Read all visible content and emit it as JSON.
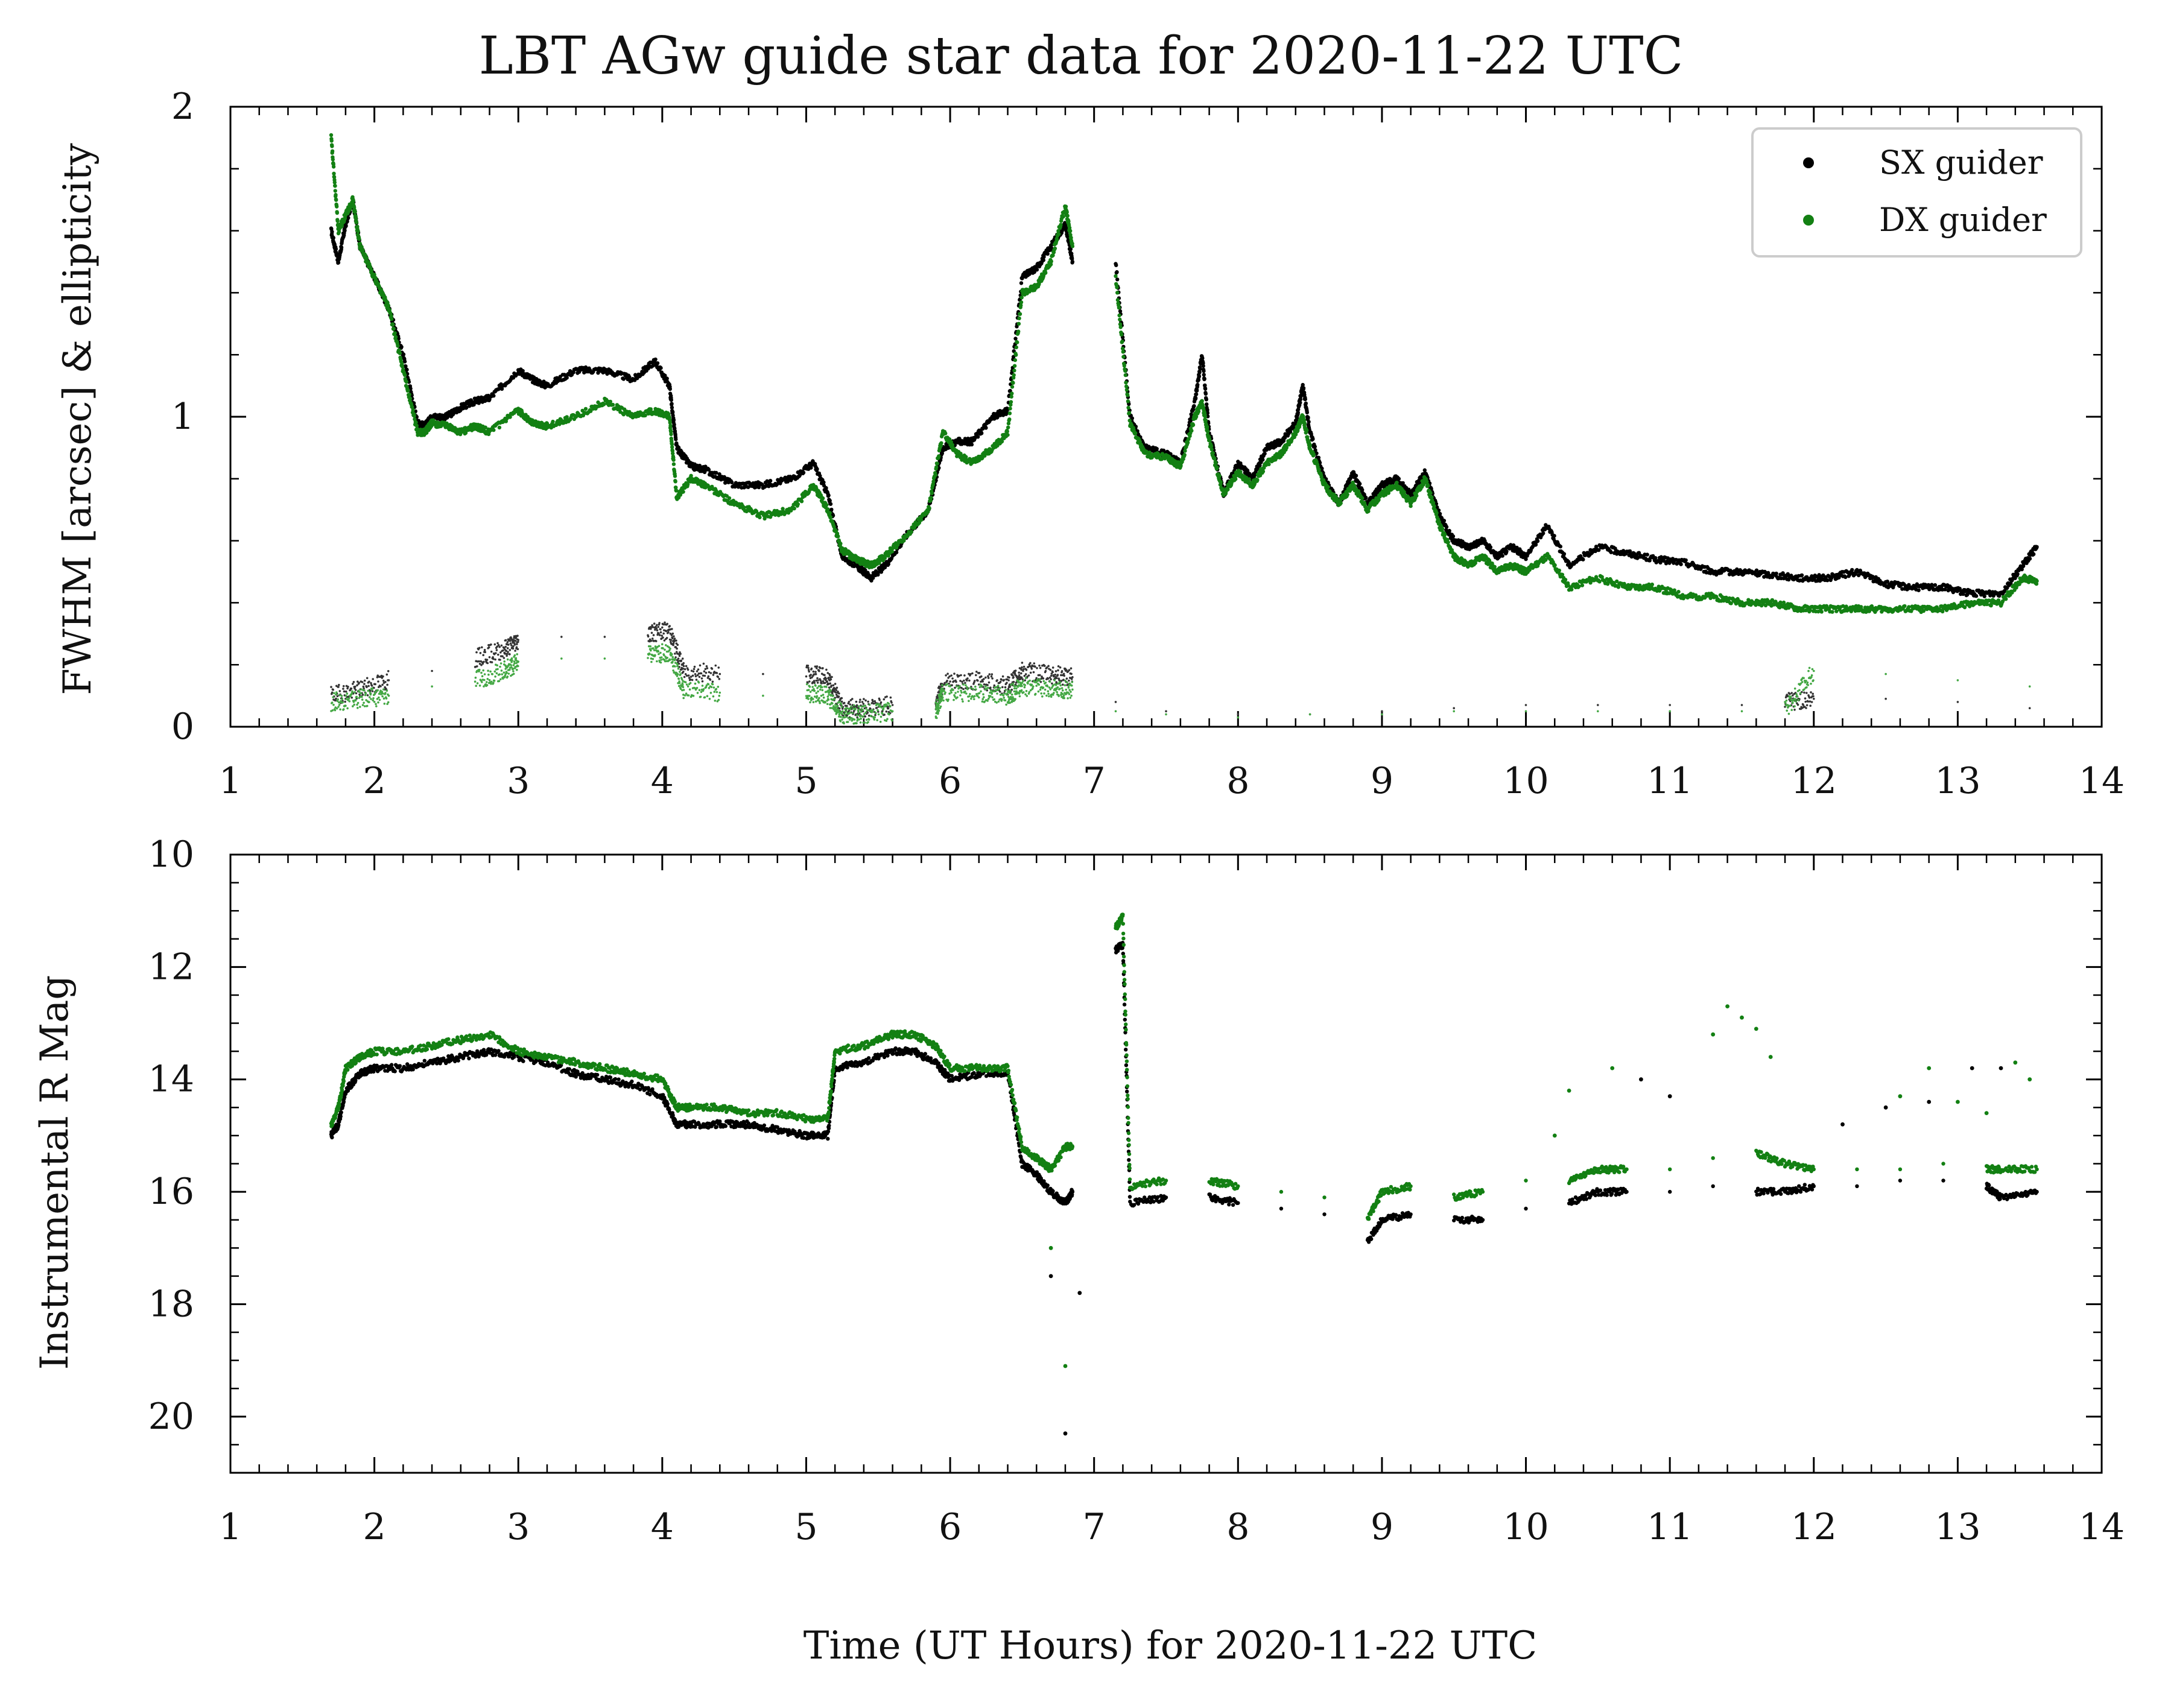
{
  "figure": {
    "title": "LBT AGw guide star data for 2020-11-22 UTC",
    "xlabel": "Time (UT Hours) for 2020-11-22 UTC"
  },
  "colors": {
    "sx": "#000000",
    "dx": "#138013",
    "sx_ellipticity": "#333333",
    "dx_ellipticity": "#44a844"
  },
  "legend": {
    "placement": "top-right",
    "entries": [
      {
        "name": "SX guider",
        "color": "#000000"
      },
      {
        "name": "DX guider",
        "color": "#138013"
      }
    ]
  },
  "chart_data": [
    {
      "type": "scatter",
      "panel": "top",
      "title": "LBT AGw guide star data for 2020-11-22 UTC",
      "xlabel": "",
      "ylabel": "FWHM [arcsec] & ellipticity",
      "xlim": [
        1,
        14
      ],
      "ylim": [
        0,
        2
      ],
      "xticks": [
        1,
        2,
        3,
        4,
        5,
        6,
        7,
        8,
        9,
        10,
        11,
        12,
        13,
        14
      ],
      "yticks": [
        0,
        1,
        2
      ],
      "grid": false,
      "legend": "top-right",
      "series": [
        {
          "name": "SX guider",
          "kind": "fwhm",
          "color": "#000000",
          "x": [
            1.7,
            1.75,
            1.8,
            1.85,
            1.9,
            2.0,
            2.1,
            2.2,
            2.3,
            2.35,
            2.4,
            2.5,
            2.6,
            2.7,
            2.8,
            3.0,
            3.1,
            3.2,
            3.4,
            3.6,
            3.8,
            3.95,
            4.05,
            4.1,
            4.2,
            4.3,
            4.5,
            4.7,
            4.9,
            5.05,
            5.15,
            5.25,
            5.35,
            5.45,
            5.55,
            5.7,
            5.85,
            5.95,
            6.05,
            6.15,
            6.3,
            6.4,
            6.5,
            6.6,
            6.7,
            6.8,
            6.85,
            7.15,
            7.25,
            7.35,
            7.5,
            7.6,
            7.7,
            7.75,
            7.8,
            7.9,
            8.0,
            8.1,
            8.2,
            8.3,
            8.4,
            8.45,
            8.5,
            8.6,
            8.7,
            8.8,
            8.9,
            9.0,
            9.1,
            9.2,
            9.3,
            9.4,
            9.5,
            9.6,
            9.7,
            9.8,
            9.9,
            10.0,
            10.15,
            10.3,
            10.5,
            10.7,
            10.9,
            11.1,
            11.3,
            11.5,
            11.7,
            11.9,
            12.1,
            12.3,
            12.5,
            12.7,
            12.9,
            13.1,
            13.3,
            13.45,
            13.55
          ],
          "y": [
            1.6,
            1.5,
            1.62,
            1.7,
            1.55,
            1.45,
            1.35,
            1.2,
            0.98,
            0.97,
            1.0,
            1.0,
            1.03,
            1.05,
            1.06,
            1.15,
            1.12,
            1.1,
            1.15,
            1.15,
            1.12,
            1.18,
            1.1,
            0.9,
            0.84,
            0.83,
            0.78,
            0.78,
            0.8,
            0.85,
            0.75,
            0.55,
            0.52,
            0.48,
            0.52,
            0.62,
            0.7,
            0.9,
            0.92,
            0.92,
            1.0,
            1.02,
            1.45,
            1.48,
            1.55,
            1.62,
            1.5,
            1.5,
            1.0,
            0.9,
            0.88,
            0.85,
            1.05,
            1.2,
            0.95,
            0.75,
            0.85,
            0.8,
            0.9,
            0.92,
            0.98,
            1.1,
            0.95,
            0.8,
            0.72,
            0.82,
            0.72,
            0.78,
            0.8,
            0.75,
            0.82,
            0.68,
            0.6,
            0.58,
            0.6,
            0.55,
            0.58,
            0.55,
            0.65,
            0.52,
            0.58,
            0.56,
            0.54,
            0.53,
            0.5,
            0.5,
            0.49,
            0.48,
            0.48,
            0.5,
            0.46,
            0.45,
            0.45,
            0.43,
            0.43,
            0.52,
            0.58
          ]
        },
        {
          "name": "DX guider",
          "kind": "fwhm",
          "color": "#138013",
          "x": [
            1.7,
            1.75,
            1.8,
            1.85,
            1.9,
            2.0,
            2.1,
            2.2,
            2.3,
            2.35,
            2.4,
            2.5,
            2.6,
            2.7,
            2.8,
            3.0,
            3.1,
            3.2,
            3.4,
            3.6,
            3.8,
            3.95,
            4.05,
            4.1,
            4.2,
            4.3,
            4.5,
            4.7,
            4.9,
            5.05,
            5.15,
            5.25,
            5.35,
            5.45,
            5.55,
            5.7,
            5.85,
            5.95,
            6.05,
            6.15,
            6.3,
            6.4,
            6.5,
            6.6,
            6.7,
            6.8,
            6.85,
            7.15,
            7.25,
            7.35,
            7.5,
            7.6,
            7.7,
            7.75,
            7.8,
            7.9,
            8.0,
            8.1,
            8.2,
            8.3,
            8.4,
            8.45,
            8.5,
            8.6,
            8.7,
            8.8,
            8.9,
            9.0,
            9.1,
            9.2,
            9.3,
            9.4,
            9.5,
            9.6,
            9.7,
            9.8,
            9.9,
            10.0,
            10.15,
            10.3,
            10.5,
            10.7,
            10.9,
            11.1,
            11.3,
            11.5,
            11.7,
            11.9,
            12.1,
            12.3,
            12.5,
            12.7,
            12.9,
            13.1,
            13.3,
            13.45,
            13.55
          ],
          "y": [
            1.9,
            1.6,
            1.65,
            1.7,
            1.55,
            1.45,
            1.35,
            1.15,
            0.95,
            0.95,
            0.98,
            0.97,
            0.95,
            0.97,
            0.95,
            1.02,
            0.98,
            0.97,
            1.0,
            1.05,
            1.0,
            1.02,
            1.0,
            0.74,
            0.8,
            0.78,
            0.72,
            0.68,
            0.7,
            0.78,
            0.7,
            0.57,
            0.54,
            0.52,
            0.55,
            0.62,
            0.7,
            0.95,
            0.88,
            0.85,
            0.9,
            0.95,
            1.4,
            1.42,
            1.5,
            1.68,
            1.55,
            1.45,
            0.98,
            0.88,
            0.87,
            0.84,
            1.0,
            1.05,
            0.92,
            0.75,
            0.82,
            0.78,
            0.85,
            0.88,
            0.95,
            1.0,
            0.9,
            0.78,
            0.72,
            0.78,
            0.7,
            0.75,
            0.78,
            0.72,
            0.8,
            0.65,
            0.55,
            0.52,
            0.55,
            0.5,
            0.52,
            0.5,
            0.55,
            0.45,
            0.48,
            0.45,
            0.45,
            0.42,
            0.42,
            0.4,
            0.4,
            0.38,
            0.38,
            0.38,
            0.38,
            0.38,
            0.38,
            0.4,
            0.4,
            0.48,
            0.47
          ]
        },
        {
          "name": "SX ellipticity",
          "kind": "ellipticity",
          "color": "#333333",
          "x": [
            1.7,
            1.9,
            2.1,
            2.4,
            2.7,
            2.9,
            3.0,
            3.3,
            3.6,
            3.9,
            4.05,
            4.15,
            4.4,
            4.7,
            5.0,
            5.15,
            5.25,
            5.4,
            5.6,
            5.9,
            5.95,
            6.2,
            6.4,
            6.5,
            6.7,
            6.85,
            7.15,
            7.5,
            8.0,
            8.5,
            9.0,
            9.5,
            10.0,
            10.5,
            11.0,
            11.5,
            11.8,
            12.0,
            12.5,
            13.0,
            13.5
          ],
          "y": [
            0.1,
            0.12,
            0.15,
            0.18,
            0.22,
            0.25,
            0.28,
            0.29,
            0.29,
            0.3,
            0.31,
            0.18,
            0.17,
            0.17,
            0.17,
            0.16,
            0.06,
            0.06,
            0.07,
            0.07,
            0.14,
            0.15,
            0.13,
            0.18,
            0.17,
            0.16,
            0.08,
            0.05,
            0.04,
            0.04,
            0.05,
            0.06,
            0.07,
            0.07,
            0.07,
            0.07,
            0.08,
            0.09,
            0.09,
            0.08,
            0.06
          ]
        },
        {
          "name": "DX ellipticity",
          "kind": "ellipticity",
          "color": "#44a844",
          "x": [
            1.7,
            1.9,
            2.1,
            2.4,
            2.7,
            2.9,
            3.0,
            3.3,
            3.6,
            3.9,
            4.05,
            4.15,
            4.4,
            4.7,
            5.0,
            5.15,
            5.25,
            5.4,
            5.6,
            5.9,
            5.95,
            6.2,
            6.4,
            6.5,
            6.7,
            6.85,
            7.15,
            7.5,
            8.0,
            8.5,
            9.0,
            9.5,
            10.0,
            10.5,
            11.0,
            11.5,
            11.8,
            12.0,
            12.5,
            13.0,
            13.5
          ],
          "y": [
            0.08,
            0.09,
            0.1,
            0.13,
            0.15,
            0.18,
            0.21,
            0.22,
            0.22,
            0.23,
            0.24,
            0.12,
            0.11,
            0.1,
            0.11,
            0.1,
            0.04,
            0.04,
            0.05,
            0.05,
            0.11,
            0.11,
            0.1,
            0.13,
            0.12,
            0.12,
            0.05,
            0.04,
            0.03,
            0.04,
            0.04,
            0.05,
            0.05,
            0.05,
            0.05,
            0.05,
            0.05,
            0.18,
            0.17,
            0.15,
            0.13
          ]
        }
      ]
    },
    {
      "type": "scatter",
      "panel": "bottom",
      "xlabel": "Time (UT Hours) for 2020-11-22 UTC",
      "ylabel": "Instrumental R Mag",
      "xlim": [
        1,
        14
      ],
      "ylim": [
        21,
        10
      ],
      "y_inverted": true,
      "xticks": [
        1,
        2,
        3,
        4,
        5,
        6,
        7,
        8,
        9,
        10,
        11,
        12,
        13,
        14
      ],
      "yticks": [
        10,
        12,
        14,
        16,
        18,
        20
      ],
      "grid": false,
      "series": [
        {
          "name": "SX guider",
          "color": "#000000",
          "x": [
            1.7,
            1.75,
            1.8,
            1.9,
            2.0,
            2.2,
            2.4,
            2.6,
            2.8,
            3.0,
            3.2,
            3.4,
            3.6,
            3.8,
            4.0,
            4.1,
            4.2,
            4.4,
            4.6,
            4.8,
            5.0,
            5.15,
            5.2,
            5.4,
            5.6,
            5.75,
            5.9,
            6.0,
            6.2,
            6.4,
            6.5,
            6.6,
            6.7,
            6.8,
            6.85,
            7.15,
            7.2,
            7.25,
            7.5,
            7.8,
            8.0,
            8.3,
            8.6,
            8.9,
            9.0,
            9.2,
            9.5,
            9.7,
            10.0,
            10.3,
            10.5,
            10.7,
            11.0,
            11.3,
            11.6,
            11.8,
            12.0,
            12.3,
            12.6,
            12.9,
            13.2,
            13.3,
            13.55
          ],
          "y": [
            15.0,
            14.8,
            14.2,
            13.9,
            13.8,
            13.8,
            13.7,
            13.6,
            13.5,
            13.6,
            13.7,
            13.9,
            14.0,
            14.1,
            14.3,
            14.8,
            14.8,
            14.8,
            14.8,
            14.9,
            15.0,
            15.0,
            13.8,
            13.7,
            13.5,
            13.5,
            13.7,
            14.0,
            13.9,
            13.9,
            15.5,
            15.7,
            16.0,
            16.2,
            16.0,
            11.7,
            11.6,
            16.2,
            16.1,
            16.1,
            16.2,
            16.3,
            16.4,
            16.9,
            16.5,
            16.4,
            16.5,
            16.5,
            16.3,
            16.2,
            16.0,
            16.0,
            16.0,
            15.9,
            16.0,
            16.0,
            15.9,
            15.9,
            15.8,
            15.8,
            15.9,
            16.1,
            16.0
          ]
        },
        {
          "name": "DX guider",
          "color": "#138013",
          "x": [
            1.7,
            1.75,
            1.8,
            1.9,
            2.0,
            2.2,
            2.4,
            2.6,
            2.8,
            3.0,
            3.2,
            3.4,
            3.6,
            3.8,
            4.0,
            4.1,
            4.2,
            4.4,
            4.6,
            4.8,
            5.0,
            5.15,
            5.2,
            5.4,
            5.6,
            5.75,
            5.9,
            6.0,
            6.2,
            6.4,
            6.5,
            6.6,
            6.7,
            6.8,
            6.85,
            7.15,
            7.2,
            7.25,
            7.5,
            7.8,
            8.0,
            8.3,
            8.6,
            8.9,
            9.0,
            9.2,
            9.5,
            9.7,
            10.0,
            10.3,
            10.5,
            10.7,
            11.0,
            11.3,
            11.6,
            11.8,
            12.0,
            12.3,
            12.6,
            12.9,
            13.2,
            13.3,
            13.55
          ],
          "y": [
            14.8,
            14.5,
            13.8,
            13.6,
            13.5,
            13.5,
            13.4,
            13.3,
            13.2,
            13.5,
            13.6,
            13.7,
            13.8,
            13.9,
            14.0,
            14.5,
            14.5,
            14.5,
            14.6,
            14.6,
            14.7,
            14.7,
            13.5,
            13.4,
            13.2,
            13.2,
            13.4,
            13.8,
            13.8,
            13.8,
            15.2,
            15.4,
            15.6,
            15.2,
            15.2,
            11.3,
            11.1,
            15.9,
            15.8,
            15.8,
            15.9,
            16.0,
            16.1,
            16.5,
            16.0,
            15.9,
            16.1,
            16.0,
            15.8,
            15.8,
            15.6,
            15.6,
            15.6,
            15.4,
            15.3,
            15.5,
            15.6,
            15.6,
            15.6,
            15.5,
            15.6,
            15.6,
            15.6
          ]
        },
        {
          "name": "DX guider outliers",
          "color": "#138013",
          "x": [
            10.2,
            10.3,
            10.6,
            11.3,
            11.4,
            11.5,
            11.6,
            11.7,
            12.6,
            12.8,
            13.0,
            13.2,
            13.4,
            13.5,
            6.8,
            6.7
          ],
          "y": [
            15.0,
            14.2,
            13.8,
            13.2,
            12.7,
            12.9,
            13.1,
            13.6,
            14.3,
            13.8,
            14.4,
            14.6,
            13.7,
            14.0,
            19.1,
            17.0
          ]
        },
        {
          "name": "SX guider outliers",
          "color": "#000000",
          "x": [
            10.8,
            11.0,
            12.2,
            12.5,
            12.8,
            13.1,
            13.3,
            6.8,
            6.9,
            6.7
          ],
          "y": [
            14.0,
            14.3,
            14.8,
            14.5,
            14.4,
            13.8,
            13.8,
            20.3,
            17.8,
            17.5
          ]
        }
      ]
    }
  ]
}
